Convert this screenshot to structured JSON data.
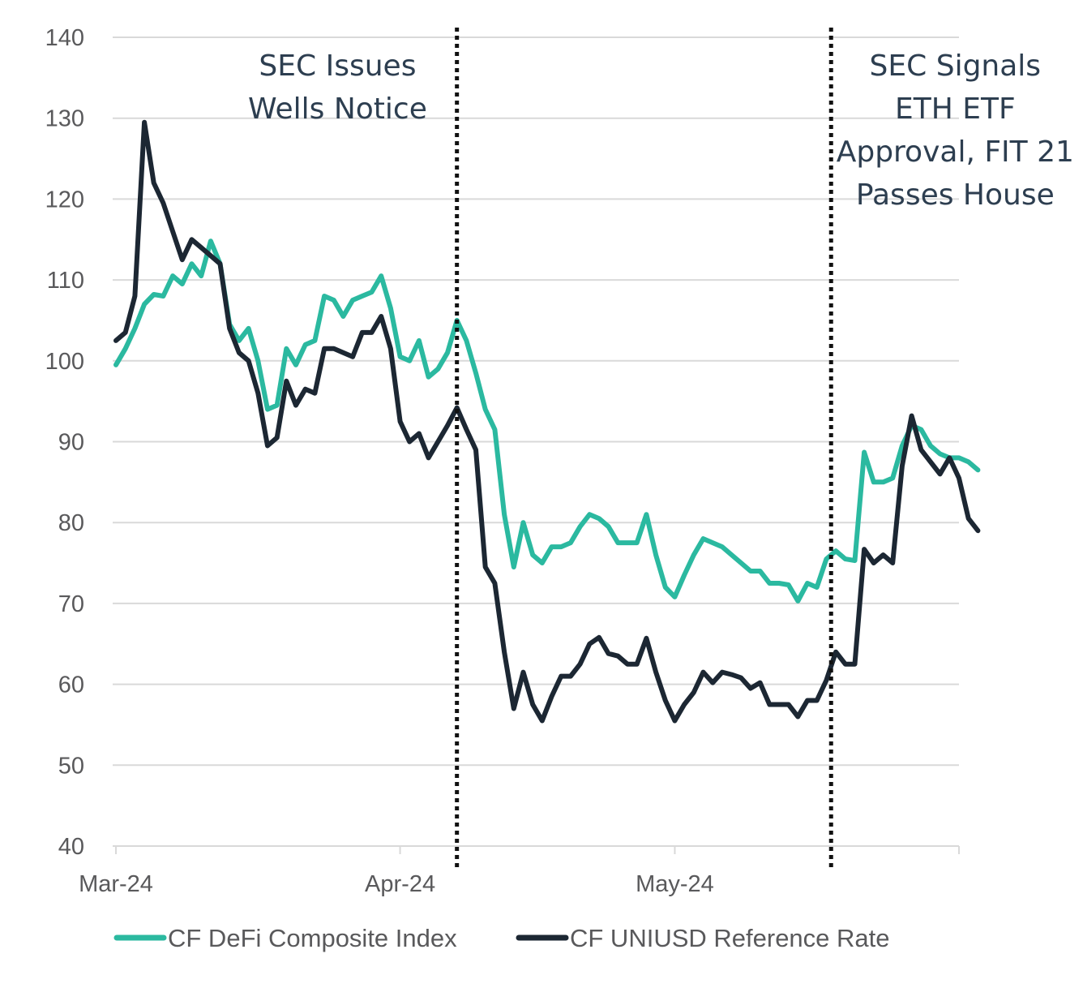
{
  "chart_data": {
    "type": "line",
    "title": "",
    "xlabel": "",
    "ylabel": "",
    "ylim": [
      40,
      140
    ],
    "yticks": [
      40,
      50,
      60,
      70,
      80,
      90,
      100,
      110,
      120,
      130,
      140
    ],
    "grid": true,
    "x_unit": "trading day index (0 = Mar-24 start)",
    "xlim": [
      0,
      89
    ],
    "xticks": [
      {
        "label": "Mar-24",
        "x": 0
      },
      {
        "label": "Apr-24",
        "x": 30
      },
      {
        "label": "May-24",
        "x": 59
      }
    ],
    "annotations": [
      {
        "x": 36,
        "style": "dotted-vertical-line",
        "lines": [
          "SEC Issues",
          "Wells Notice"
        ],
        "anchor_x": 23.4
      },
      {
        "x": 75.5,
        "style": "dotted-vertical-line",
        "lines": [
          "SEC Signals",
          "ETH ETF",
          "Approval, FIT 21",
          "Passes House"
        ],
        "anchor_x": 88.6
      }
    ],
    "legend_position": "bottom",
    "series": [
      {
        "name": "CF DeFi Composite Index",
        "color": "#2bb9a0",
        "values": [
          99.5,
          101.5,
          104,
          107,
          108.2,
          108,
          110.5,
          109.5,
          112,
          110.5,
          114.8,
          112,
          104.5,
          102.5,
          104,
          100,
          94,
          94.5,
          101.5,
          99.5,
          102,
          102.5,
          108,
          107.5,
          105.5,
          107.5,
          108,
          108.5,
          110.5,
          106.5,
          100.5,
          100,
          102.5,
          98,
          99,
          101,
          105,
          102.5,
          98.5,
          94,
          91.5,
          81,
          74.5,
          80,
          76,
          75,
          77,
          77,
          77.5,
          79.5,
          81,
          80.5,
          79.5,
          77.5,
          77.5,
          77.5,
          81,
          76,
          72,
          70.8,
          73.5,
          76,
          78,
          77.5,
          77,
          76,
          75,
          74,
          74,
          72.5,
          72.5,
          72.3,
          70.3,
          72.5,
          72,
          75.5,
          76.5,
          75.5,
          75.3,
          88.7,
          85,
          85,
          85.5,
          89.5,
          92,
          91.5,
          89.5,
          88.5,
          88,
          88,
          87.5,
          86.5
        ]
      },
      {
        "name": "CF UNIUSD Reference Rate",
        "color": "#1c2733",
        "values": [
          102.5,
          103.5,
          108,
          129.5,
          122,
          119.5,
          116,
          112.5,
          115,
          114,
          113,
          112,
          104,
          101,
          100,
          96,
          89.5,
          90.5,
          97.5,
          94.5,
          96.5,
          96,
          101.5,
          101.5,
          101,
          100.5,
          103.5,
          103.5,
          105.5,
          101.5,
          92.5,
          90,
          91,
          88,
          90,
          92,
          94.2,
          91.5,
          89,
          74.5,
          72.5,
          64,
          57,
          61.5,
          57.5,
          55.5,
          58.5,
          61,
          61,
          62.5,
          65,
          65.8,
          63.8,
          63.5,
          62.5,
          62.5,
          65.7,
          61.5,
          58,
          55.5,
          57.5,
          59,
          61.5,
          60.2,
          61.5,
          61.2,
          60.8,
          59.5,
          60.2,
          57.5,
          57.5,
          57.5,
          56,
          58,
          58,
          60.5,
          64,
          62.5,
          62.5,
          76.7,
          75,
          76,
          75,
          87,
          93.2,
          89,
          87.5,
          86,
          88,
          85.5,
          80.5,
          79
        ]
      }
    ]
  }
}
